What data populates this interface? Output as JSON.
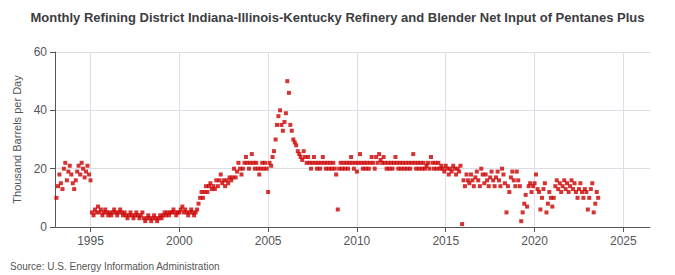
{
  "chart_data": {
    "type": "scatter",
    "title": "Monthly Refining District Indiana-Illinois-Kentucky Refinery and Blender Net Input of Pentanes Plus",
    "ylabel": "Thousand Barrels per Day",
    "annotations": [
      "Source: U.S. Energy Information Administration"
    ],
    "color": "#cc0000",
    "marker": "square",
    "grid": true,
    "xlim": [
      1993.0,
      2026.5
    ],
    "ylim": [
      0,
      60
    ],
    "xticks": [
      1995,
      2000,
      2005,
      2010,
      2015,
      2020,
      2025
    ],
    "yticks": [
      0,
      20,
      40,
      60
    ],
    "x": [
      1993.08,
      1993.17,
      1993.25,
      1993.33,
      1993.42,
      1993.5,
      1993.58,
      1993.67,
      1993.75,
      1993.83,
      1993.92,
      1994,
      1994.08,
      1994.17,
      1994.25,
      1994.33,
      1994.42,
      1994.5,
      1994.58,
      1994.67,
      1994.75,
      1994.83,
      1994.92,
      1995,
      1995.08,
      1995.17,
      1995.25,
      1995.33,
      1995.42,
      1995.5,
      1995.58,
      1995.67,
      1995.75,
      1995.83,
      1995.92,
      1996,
      1996.08,
      1996.17,
      1996.25,
      1996.33,
      1996.42,
      1996.5,
      1996.58,
      1996.67,
      1996.75,
      1996.83,
      1996.92,
      1997,
      1997.08,
      1997.17,
      1997.25,
      1997.33,
      1997.42,
      1997.5,
      1997.58,
      1997.67,
      1997.75,
      1997.83,
      1997.92,
      1998,
      1998.08,
      1998.17,
      1998.25,
      1998.33,
      1998.42,
      1998.5,
      1998.58,
      1998.67,
      1998.75,
      1998.83,
      1998.92,
      1999,
      1999.08,
      1999.17,
      1999.25,
      1999.33,
      1999.42,
      1999.5,
      1999.58,
      1999.67,
      1999.75,
      1999.83,
      1999.92,
      2000,
      2000.08,
      2000.17,
      2000.25,
      2000.33,
      2000.42,
      2000.5,
      2000.58,
      2000.67,
      2000.75,
      2000.83,
      2000.92,
      2001,
      2001.08,
      2001.17,
      2001.25,
      2001.33,
      2001.42,
      2001.5,
      2001.58,
      2001.67,
      2001.75,
      2001.83,
      2001.92,
      2002,
      2002.08,
      2002.17,
      2002.25,
      2002.33,
      2002.42,
      2002.5,
      2002.58,
      2002.67,
      2002.75,
      2002.83,
      2002.92,
      2003,
      2003.08,
      2003.17,
      2003.25,
      2003.33,
      2003.42,
      2003.5,
      2003.58,
      2003.67,
      2003.75,
      2003.83,
      2003.92,
      2004,
      2004.08,
      2004.17,
      2004.25,
      2004.33,
      2004.42,
      2004.5,
      2004.58,
      2004.67,
      2004.75,
      2004.83,
      2004.92,
      2005,
      2005.08,
      2005.17,
      2005.25,
      2005.33,
      2005.42,
      2005.5,
      2005.58,
      2005.67,
      2005.75,
      2005.83,
      2005.92,
      2006,
      2006.08,
      2006.17,
      2006.25,
      2006.33,
      2006.42,
      2006.5,
      2006.58,
      2006.67,
      2006.75,
      2006.83,
      2006.92,
      2007,
      2007.08,
      2007.17,
      2007.25,
      2007.33,
      2007.42,
      2007.5,
      2007.58,
      2007.67,
      2007.75,
      2007.83,
      2007.92,
      2008,
      2008.08,
      2008.17,
      2008.25,
      2008.33,
      2008.42,
      2008.5,
      2008.58,
      2008.67,
      2008.75,
      2008.83,
      2008.92,
      2009,
      2009.08,
      2009.17,
      2009.25,
      2009.33,
      2009.42,
      2009.5,
      2009.58,
      2009.67,
      2009.75,
      2009.83,
      2009.92,
      2010,
      2010.08,
      2010.17,
      2010.25,
      2010.33,
      2010.42,
      2010.5,
      2010.58,
      2010.67,
      2010.75,
      2010.83,
      2010.92,
      2011,
      2011.08,
      2011.17,
      2011.25,
      2011.33,
      2011.42,
      2011.5,
      2011.58,
      2011.67,
      2011.75,
      2011.83,
      2011.92,
      2012,
      2012.08,
      2012.17,
      2012.25,
      2012.33,
      2012.42,
      2012.5,
      2012.58,
      2012.67,
      2012.75,
      2012.83,
      2012.92,
      2013,
      2013.08,
      2013.17,
      2013.25,
      2013.33,
      2013.42,
      2013.5,
      2013.58,
      2013.67,
      2013.75,
      2013.83,
      2013.92,
      2014,
      2014.08,
      2014.17,
      2014.25,
      2014.33,
      2014.42,
      2014.5,
      2014.58,
      2014.67,
      2014.75,
      2014.83,
      2014.92,
      2015,
      2015.08,
      2015.17,
      2015.25,
      2015.33,
      2015.42,
      2015.5,
      2015.58,
      2015.67,
      2015.75,
      2015.83,
      2015.92,
      2016,
      2016.08,
      2016.17,
      2016.25,
      2016.33,
      2016.42,
      2016.5,
      2016.58,
      2016.67,
      2016.75,
      2016.83,
      2016.92,
      2017,
      2017.08,
      2017.17,
      2017.25,
      2017.33,
      2017.42,
      2017.5,
      2017.58,
      2017.67,
      2017.75,
      2017.83,
      2017.92,
      2018,
      2018.08,
      2018.17,
      2018.25,
      2018.33,
      2018.42,
      2018.5,
      2018.58,
      2018.67,
      2018.75,
      2018.83,
      2018.92,
      2019,
      2019.08,
      2019.17,
      2019.25,
      2019.33,
      2019.42,
      2019.5,
      2019.58,
      2019.67,
      2019.75,
      2019.83,
      2019.92,
      2020,
      2020.08,
      2020.17,
      2020.25,
      2020.33,
      2020.42,
      2020.5,
      2020.58,
      2020.67,
      2020.75,
      2020.83,
      2020.92,
      2021,
      2021.08,
      2021.17,
      2021.25,
      2021.33,
      2021.42,
      2021.5,
      2021.58,
      2021.67,
      2021.75,
      2021.83,
      2021.92,
      2022,
      2022.08,
      2022.17,
      2022.25,
      2022.33,
      2022.42,
      2022.5,
      2022.58,
      2022.67,
      2022.75,
      2022.83,
      2022.92,
      2023,
      2023.08,
      2023.17,
      2023.25,
      2023.33,
      2023.42,
      2023.5,
      2023.58
    ],
    "values": [
      10,
      14,
      18,
      15,
      13,
      20,
      22,
      16,
      19,
      21,
      18,
      15,
      13,
      16,
      19,
      21,
      18,
      22,
      20,
      17,
      19,
      21,
      18,
      16,
      5,
      4,
      6,
      5,
      7,
      5,
      6,
      4,
      5,
      6,
      5,
      4,
      5,
      4,
      5,
      6,
      5,
      4,
      5,
      6,
      5,
      4,
      5,
      4,
      3,
      4,
      5,
      4,
      3,
      4,
      5,
      4,
      3,
      4,
      5,
      3,
      2,
      3,
      4,
      3,
      2,
      3,
      4,
      3,
      2,
      3,
      4,
      3,
      4,
      5,
      4,
      5,
      4,
      5,
      5,
      6,
      5,
      4,
      5,
      5,
      6,
      7,
      5,
      6,
      5,
      4,
      5,
      6,
      5,
      4,
      5,
      6,
      8,
      10,
      12,
      10,
      12,
      14,
      12,
      14,
      15,
      13,
      14,
      13,
      16,
      14,
      16,
      18,
      15,
      16,
      14,
      16,
      15,
      17,
      16,
      17,
      20,
      17,
      19,
      22,
      20,
      18,
      20,
      22,
      24,
      22,
      20,
      22,
      25,
      22,
      20,
      22,
      20,
      18,
      20,
      22,
      20,
      22,
      20,
      12,
      22,
      21,
      24,
      26,
      30,
      35,
      38,
      40,
      35,
      33,
      36,
      39,
      50,
      46,
      35,
      33,
      30,
      29,
      28,
      26,
      25,
      24,
      23,
      26,
      24,
      22,
      24,
      22,
      20,
      22,
      24,
      22,
      20,
      22,
      20,
      22,
      24,
      22,
      20,
      22,
      20,
      22,
      20,
      22,
      20,
      18,
      6,
      20,
      22,
      20,
      22,
      20,
      22,
      20,
      22,
      24,
      22,
      20,
      22,
      19,
      22,
      25,
      22,
      20,
      22,
      20,
      22,
      20,
      22,
      24,
      22,
      20,
      24,
      22,
      25,
      23,
      22,
      24,
      22,
      20,
      22,
      20,
      22,
      20,
      22,
      24,
      22,
      20,
      22,
      20,
      22,
      20,
      22,
      20,
      22,
      20,
      22,
      25,
      22,
      20,
      22,
      20,
      22,
      20,
      22,
      20,
      21,
      22,
      20,
      24,
      22,
      20,
      22,
      20,
      22,
      20,
      21,
      20,
      19,
      21,
      20,
      18,
      20,
      19,
      21,
      20,
      18,
      20,
      19,
      21,
      1,
      16,
      14,
      18,
      16,
      15,
      18,
      16,
      14,
      17,
      19,
      16,
      14,
      20,
      18,
      15,
      18,
      16,
      14,
      17,
      19,
      16,
      14,
      17,
      19,
      16,
      14,
      20,
      18,
      15,
      5,
      14,
      12,
      17,
      19,
      16,
      14,
      19,
      16,
      14,
      2,
      5,
      8,
      11,
      7,
      14,
      15,
      12,
      14,
      15,
      18,
      13,
      12,
      6,
      10,
      13,
      15,
      5,
      8,
      12,
      10,
      7,
      10,
      14,
      16,
      13,
      15,
      12,
      14,
      16,
      13,
      15,
      12,
      14,
      16,
      13,
      15,
      12,
      10,
      13,
      15,
      12,
      10,
      13,
      12,
      6,
      10,
      13,
      15,
      5,
      8,
      12,
      10
    ]
  }
}
